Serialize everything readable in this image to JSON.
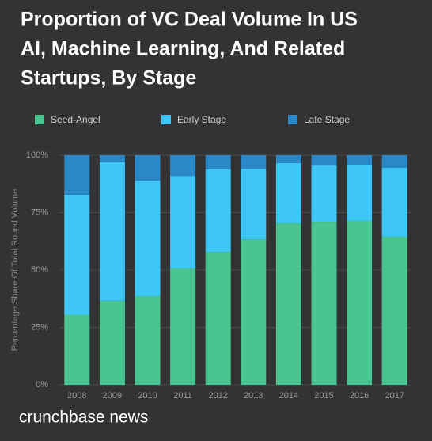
{
  "chart_data": {
    "type": "stacked_bar",
    "title": [
      "Proportion of VC Deal Volume In US",
      "AI, Machine Learning, And Related",
      "Startups, By Stage"
    ],
    "y_label": "Percentage Share Of Total Round Volume",
    "categories": [
      "2008",
      "2009",
      "2010",
      "2011",
      "2012",
      "2013",
      "2014",
      "2015",
      "2016",
      "2017"
    ],
    "series": [
      {
        "name": "Seed-Angel",
        "color": "#4ac591",
        "values": [
          30.5,
          36.6,
          38.6,
          50.7,
          57.9,
          63.4,
          70.3,
          71.0,
          71.4,
          64.5
        ]
      },
      {
        "name": "Early Stage",
        "color": "#3ec6f7",
        "values": [
          52.3,
          60.3,
          50.4,
          40.3,
          35.9,
          30.7,
          26.3,
          24.5,
          24.5,
          30.0
        ]
      },
      {
        "name": "Late Stage",
        "color": "#2a88c8",
        "values": [
          17.2,
          3.1,
          11.0,
          9.0,
          6.2,
          5.9,
          3.4,
          4.5,
          4.1,
          5.5
        ]
      }
    ],
    "ylim": [
      0,
      100
    ],
    "yticks": [
      {
        "value": 0,
        "label": "0%"
      },
      {
        "value": 25,
        "label": "25%"
      },
      {
        "value": 50,
        "label": "50%"
      },
      {
        "value": 75,
        "label": "75%"
      },
      {
        "value": 100,
        "label": "100%"
      }
    ],
    "grid": true,
    "source": "crunchbase news"
  }
}
